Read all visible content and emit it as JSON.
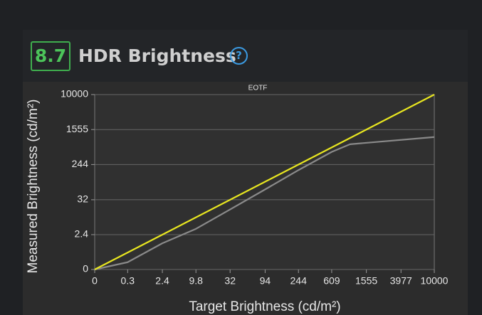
{
  "score": "8.7",
  "heading": "HDR Brightness",
  "help_icon": "?",
  "chart_data": {
    "type": "line",
    "title": "EOTF",
    "xlabel": "Target Brightness (cd/m²)",
    "ylabel": "Measured Brightness (cd/m²)",
    "xscale": "pq",
    "yscale": "pq",
    "grid": true,
    "xlim": [
      0,
      10000
    ],
    "ylim": [
      0,
      10000
    ],
    "xticks": [
      0,
      0.3,
      2.4,
      9.8,
      32,
      94,
      244,
      609,
      1555,
      3977,
      10000
    ],
    "yticks": [
      0,
      2.4,
      32,
      244,
      1555,
      10000
    ],
    "series": [
      {
        "color": "#8a8a8a",
        "x": [
          0,
          0.3,
          2.4,
          9.8,
          32,
          94,
          244,
          609,
          1000,
          10000
        ],
        "values": [
          0,
          0.04,
          1,
          4,
          17,
          60,
          180,
          480,
          720,
          1050
        ]
      },
      {
        "color": "#e8e620",
        "x": [
          0,
          10000
        ],
        "values": [
          0,
          10000
        ]
      }
    ]
  }
}
